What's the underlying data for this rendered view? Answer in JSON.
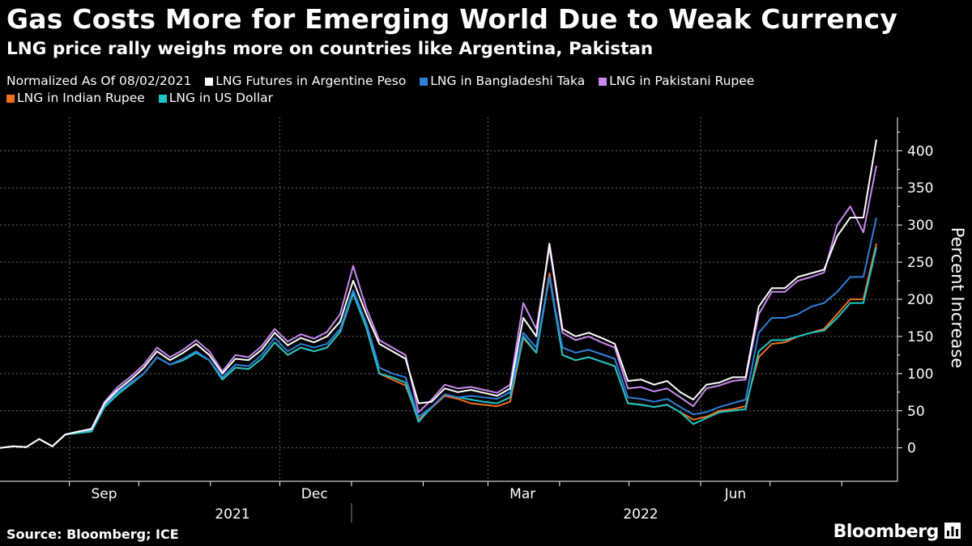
{
  "header": {
    "title": "Gas Costs More for Emerging World Due to Weak Currency",
    "subtitle": "LNG price rally weighs more on countries like Argentina, Pakistan"
  },
  "legend_note": "Normalized As Of 08/02/2021",
  "footer": {
    "source": "Source: Bloomberg; ICE",
    "brand": "Bloomberg"
  },
  "chart_data": {
    "type": "line",
    "ylabel": "Percent Increase",
    "ylim": [
      -45,
      445
    ],
    "yticks": [
      0,
      50,
      100,
      150,
      200,
      250,
      300,
      350,
      400
    ],
    "month_ticks": [
      "Sep",
      "Dec",
      "Mar",
      "Jun"
    ],
    "year_labels": [
      "2021",
      "2022"
    ],
    "grid": true,
    "legend_position": "top-left",
    "x_start": "2021-08-02",
    "series": [
      {
        "name": "LNG Futures in Argentine Peso",
        "color": "#ffffff",
        "values": [
          0,
          2,
          1,
          12,
          2,
          18,
          22,
          25,
          60,
          78,
          92,
          108,
          130,
          118,
          128,
          140,
          125,
          100,
          120,
          118,
          132,
          155,
          138,
          148,
          142,
          150,
          170,
          225,
          180,
          140,
          130,
          120,
          60,
          62,
          80,
          75,
          78,
          74,
          70,
          80,
          175,
          150,
          275,
          160,
          150,
          155,
          148,
          140,
          90,
          92,
          85,
          90,
          75,
          65,
          85,
          88,
          95,
          95,
          190,
          215,
          215,
          230,
          235,
          240,
          285,
          310,
          310,
          415
        ]
      },
      {
        "name": "LNG in Bangladeshi Taka",
        "color": "#2f7fd9",
        "values": [
          0,
          2,
          1,
          12,
          2,
          18,
          22,
          24,
          58,
          75,
          88,
          100,
          122,
          112,
          120,
          130,
          118,
          95,
          112,
          110,
          125,
          148,
          130,
          140,
          135,
          140,
          160,
          212,
          168,
          108,
          100,
          95,
          42,
          55,
          72,
          68,
          70,
          68,
          66,
          75,
          155,
          135,
          230,
          135,
          128,
          132,
          126,
          120,
          68,
          66,
          62,
          66,
          55,
          45,
          48,
          55,
          60,
          65,
          155,
          175,
          175,
          180,
          190,
          195,
          210,
          230,
          230,
          310
        ]
      },
      {
        "name": "LNG in Pakistani Rupee",
        "color": "#c98af0",
        "values": [
          0,
          2,
          1,
          12,
          2,
          18,
          22,
          26,
          62,
          82,
          96,
          112,
          135,
          122,
          132,
          145,
          130,
          103,
          125,
          122,
          137,
          160,
          143,
          153,
          147,
          156,
          180,
          245,
          188,
          145,
          135,
          125,
          48,
          65,
          85,
          80,
          82,
          78,
          74,
          85,
          195,
          160,
          270,
          155,
          145,
          150,
          142,
          135,
          80,
          82,
          76,
          80,
          68,
          56,
          80,
          84,
          90,
          92,
          180,
          210,
          210,
          225,
          230,
          236,
          300,
          325,
          290,
          380
        ]
      },
      {
        "name": "LNG in Indian Rupee",
        "color": "#f0701e",
        "values": [
          0,
          2,
          1,
          12,
          2,
          18,
          20,
          22,
          56,
          72,
          86,
          100,
          122,
          112,
          118,
          128,
          118,
          92,
          108,
          106,
          120,
          142,
          125,
          135,
          130,
          135,
          156,
          208,
          162,
          100,
          92,
          84,
          38,
          54,
          70,
          66,
          60,
          58,
          56,
          62,
          148,
          128,
          235,
          125,
          118,
          122,
          116,
          110,
          60,
          58,
          55,
          58,
          48,
          38,
          42,
          50,
          52,
          56,
          122,
          140,
          142,
          150,
          155,
          160,
          180,
          200,
          200,
          275
        ]
      },
      {
        "name": "LNG in US Dollar",
        "color": "#1ec8c8",
        "values": [
          0,
          2,
          1,
          12,
          2,
          18,
          20,
          22,
          55,
          72,
          86,
          100,
          122,
          112,
          118,
          128,
          118,
          92,
          108,
          106,
          120,
          142,
          125,
          135,
          130,
          135,
          156,
          208,
          162,
          100,
          95,
          88,
          35,
          55,
          72,
          68,
          65,
          62,
          60,
          68,
          150,
          128,
          230,
          125,
          118,
          122,
          116,
          110,
          60,
          58,
          55,
          58,
          48,
          32,
          40,
          48,
          50,
          52,
          130,
          145,
          145,
          150,
          155,
          158,
          175,
          195,
          195,
          270
        ]
      }
    ]
  }
}
